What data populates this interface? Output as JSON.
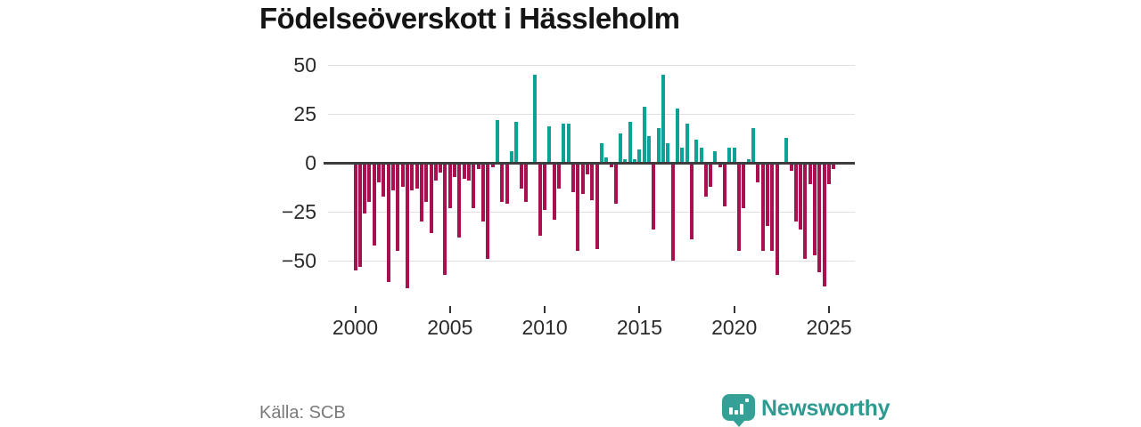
{
  "title": "Födelseöverskott i Hässleholm",
  "source": "Källa: SCB",
  "logo": {
    "text": "Newsworthy"
  },
  "colors": {
    "positive_bar": "#0ca295",
    "negative_bar": "#a9104f",
    "gridline": "#e0e0e0",
    "zero_line": "#3d3d3d",
    "axis_text": "#2b2b2b",
    "title_text": "#151515",
    "source_text": "#7a7a7a",
    "logo_teal": "#2e9a90"
  },
  "chart_data": {
    "type": "bar",
    "title": "Födelseöverskott i Hässleholm",
    "x_unit": "quarter",
    "start_quarter": "2000 Q1",
    "end_quarter": "2025 Q2",
    "xticks": [
      2000,
      2005,
      2010,
      2015,
      2020,
      2025
    ],
    "yticks": [
      50,
      25,
      0,
      -25,
      -50
    ],
    "ylim": [
      -70,
      57
    ],
    "grid": "horizontal",
    "legend": "none",
    "series": [
      {
        "name": "Födelseöverskott",
        "values": [
          -55,
          -53,
          -26,
          -20,
          -42,
          -10,
          -17,
          -61,
          -14,
          -45,
          -12,
          -64,
          -14,
          -13,
          -30,
          -20,
          -36,
          -9,
          -5,
          -57,
          -23,
          -7,
          -38,
          -8,
          -9,
          -23,
          -3,
          -30,
          -49,
          -2,
          22,
          -20,
          -21,
          6,
          21,
          -13,
          -20,
          -1,
          45,
          -37,
          -24,
          19,
          -29,
          -13,
          20,
          20,
          -15,
          -45,
          -16,
          -6,
          -19,
          -44,
          10,
          3,
          -2,
          -21,
          15,
          2,
          21,
          2,
          7,
          29,
          14,
          -34,
          18,
          45,
          10,
          -50,
          28,
          8,
          20,
          -39,
          12,
          8,
          -17,
          -12,
          6,
          -2,
          -22,
          8,
          8,
          -45,
          -23,
          2,
          18,
          -10,
          -45,
          -32,
          -45,
          -57,
          0,
          13,
          -4,
          -30,
          -34,
          -49,
          -11,
          -47,
          -56,
          -63,
          -11,
          -3
        ]
      }
    ]
  }
}
